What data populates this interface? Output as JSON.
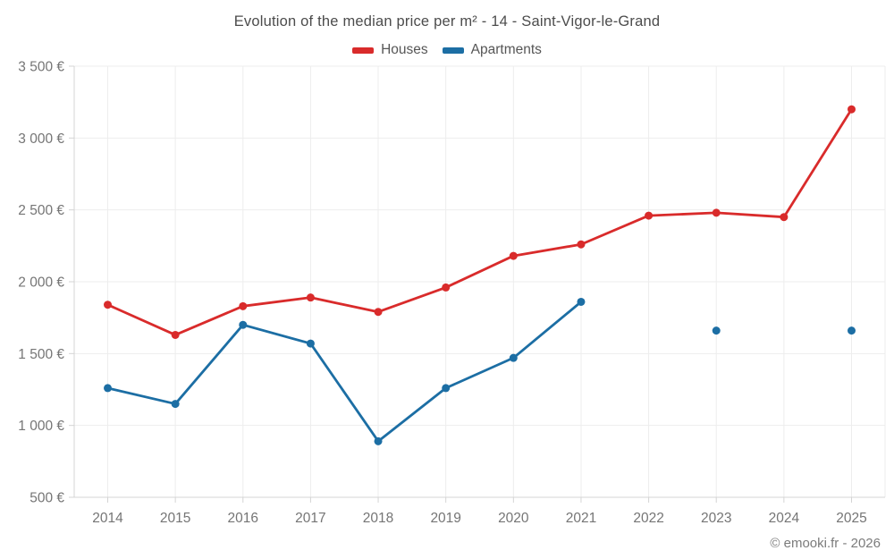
{
  "footer": {
    "text": "© emooki.fr - 2026"
  },
  "chart_data": {
    "type": "line",
    "title": "Evolution of the median price per m² - 14 - Saint-Vigor-le-Grand",
    "categories": [
      "2014",
      "2015",
      "2016",
      "2017",
      "2018",
      "2019",
      "2020",
      "2021",
      "2022",
      "2023",
      "2024",
      "2025"
    ],
    "series": [
      {
        "name": "Houses",
        "color": "#d92b2b",
        "values": [
          1840,
          1630,
          1830,
          1890,
          1790,
          1960,
          2180,
          2260,
          2460,
          2480,
          2450,
          3200
        ]
      },
      {
        "name": "Apartments",
        "color": "#1c6ea4",
        "values": [
          1260,
          1150,
          1700,
          1570,
          890,
          1260,
          1470,
          1860,
          null,
          1660,
          null,
          1660
        ]
      }
    ],
    "ylim": [
      500,
      3500
    ],
    "ytick_step": 500,
    "ytick_labels": [
      "500 €",
      "1 000 €",
      "1 500 €",
      "2 000 €",
      "2 500 €",
      "3 000 €",
      "3 500 €"
    ],
    "ylabel": "",
    "xlabel": "",
    "grid": true,
    "legend_position": "top",
    "marker": "circle",
    "colors": {
      "grid": "#ededed",
      "axis": "#d4d4d4",
      "text": "#757575"
    }
  }
}
